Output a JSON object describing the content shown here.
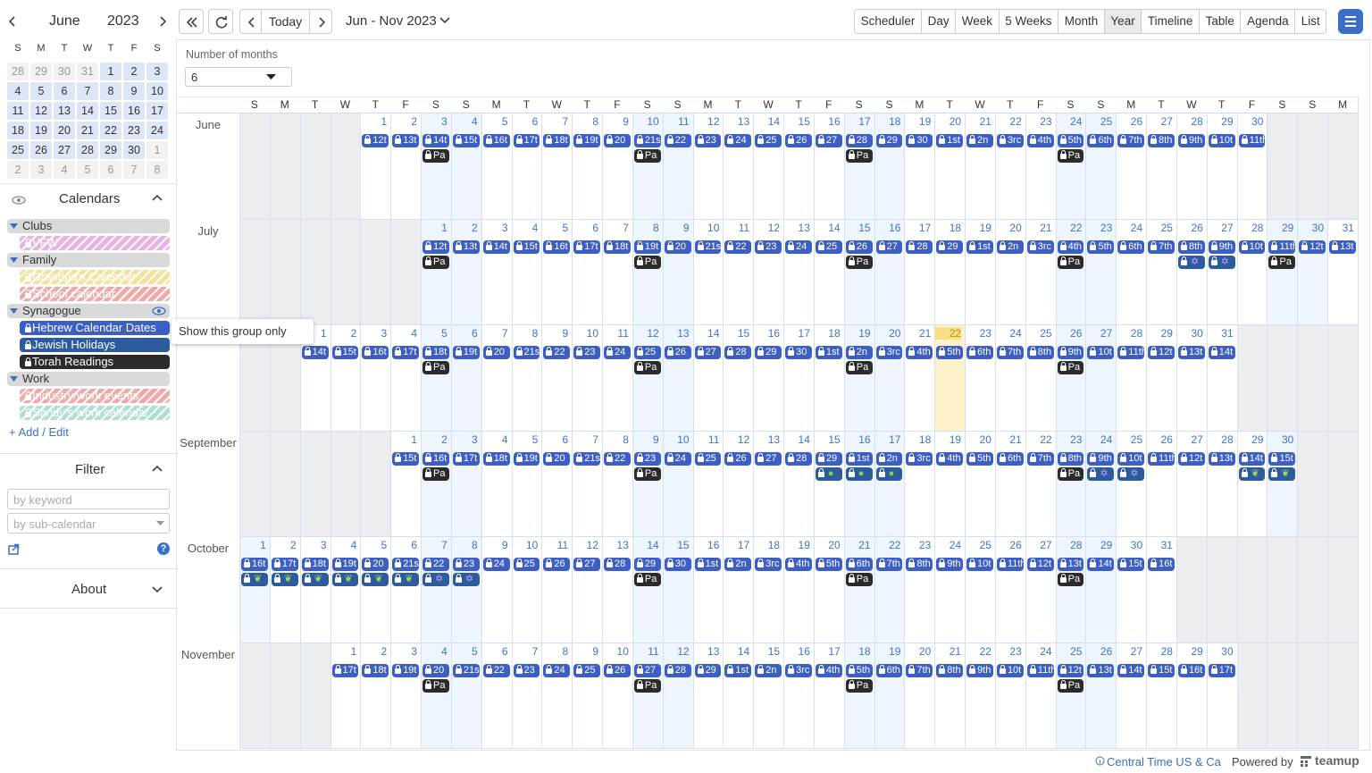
{
  "toolbar": {
    "today": "Today",
    "range": "Jun - Nov 2023",
    "views": [
      "Scheduler",
      "Day",
      "Week",
      "5 Weeks",
      "Month",
      "Year",
      "Timeline",
      "Table",
      "Agenda",
      "List"
    ],
    "active": 5
  },
  "mini_calendar": {
    "month": "June",
    "year": "2023",
    "weekdays": [
      "S",
      "M",
      "T",
      "W",
      "T",
      "F",
      "S"
    ],
    "weeks": [
      [
        28,
        29,
        30,
        31,
        1,
        2,
        3
      ],
      [
        4,
        5,
        6,
        7,
        8,
        9,
        10
      ],
      [
        11,
        12,
        13,
        14,
        15,
        16,
        17
      ],
      [
        18,
        19,
        20,
        21,
        22,
        23,
        24
      ],
      [
        25,
        26,
        27,
        28,
        29,
        30,
        1
      ],
      [
        2,
        3,
        4,
        5,
        6,
        7,
        8
      ]
    ]
  },
  "sidebar": {
    "calendars_title": "Calendars",
    "groups": [
      {
        "name": "Clubs",
        "items": [
          {
            "name": "VFW",
            "color": "#e5a5dc",
            "hidden": true
          }
        ]
      },
      {
        "name": "Family",
        "items": [
          {
            "name": "Grandpa's Calendar",
            "color": "#f3dc8c",
            "hidden": true
          },
          {
            "name": "School calendar",
            "color": "#ee9b9b",
            "hidden": true
          }
        ]
      },
      {
        "name": "Synagogue",
        "items": [
          {
            "name": "Hebrew Calendar Dates",
            "color": "#3d5fc4",
            "hidden": false
          },
          {
            "name": "Jewish Holidays",
            "color": "#2d5c9e",
            "hidden": false
          },
          {
            "name": "Torah Readings",
            "color": "#2b2b2b",
            "hidden": false
          }
        ]
      },
      {
        "name": "Work",
        "items": [
          {
            "name": "Industry/work events",
            "color": "#ee9a9a",
            "hidden": true
          },
          {
            "name": "Sandy's work calendar",
            "color": "#a3dacb",
            "hidden": true
          }
        ]
      }
    ],
    "add_edit": "+ Add / Edit",
    "tooltip": "Show this group only",
    "filter_title": "Filter",
    "keyword_placeholder": "by keyword",
    "subcalendar_placeholder": "by sub-calendar",
    "help": "?",
    "about": "About"
  },
  "months_control": {
    "label": "Number of months",
    "value": "6"
  },
  "grid": {
    "weekday_headers": [
      "S",
      "M",
      "T",
      "W",
      "T",
      "F",
      "S",
      "S",
      "M",
      "T",
      "W",
      "T",
      "F",
      "S",
      "S",
      "M",
      "T",
      "W",
      "T",
      "F",
      "S",
      "S",
      "M",
      "T",
      "W",
      "T",
      "F",
      "S",
      "S",
      "M",
      "T",
      "W",
      "T",
      "F",
      "S",
      "S",
      "M"
    ],
    "date_color": "#3d5fc4",
    "torah_color": "#2b2b2b",
    "holiday_color": "#2d5c9e",
    "today": {
      "month_index": 2,
      "day_index": 21
    },
    "months": [
      {
        "name": "June",
        "start_weekday": 4,
        "days": [
          1,
          2,
          3,
          4,
          5,
          6,
          7,
          8,
          9,
          10,
          11,
          12,
          13,
          14,
          15,
          16,
          17,
          18,
          19,
          20,
          21,
          22,
          23,
          24,
          25,
          26,
          27,
          28,
          29,
          30
        ],
        "dates": [
          "12t",
          "13t",
          "14t",
          "15t",
          "16t",
          "17t",
          "18t",
          "19t",
          "20",
          "21s",
          "22",
          "23",
          "24",
          "25",
          "26",
          "27",
          "28",
          "29",
          "30",
          "1st",
          "2n",
          "3rc",
          "4th",
          "5th",
          "6th",
          "7th",
          "8th",
          "9th",
          "10t",
          "11th"
        ],
        "extra": [
          null,
          null,
          "Pa",
          null,
          null,
          null,
          null,
          null,
          null,
          "Pa",
          null,
          null,
          null,
          null,
          null,
          null,
          "Pa",
          null,
          null,
          null,
          null,
          null,
          null,
          "Pa",
          null,
          null,
          null,
          null,
          null,
          null
        ]
      },
      {
        "name": "July",
        "start_weekday": 6,
        "days": [
          1,
          2,
          3,
          4,
          5,
          6,
          7,
          8,
          9,
          10,
          11,
          12,
          13,
          14,
          15,
          16,
          17,
          18,
          19,
          20,
          21,
          22,
          23,
          24,
          25,
          26,
          27,
          28,
          29,
          30,
          31
        ],
        "dates": [
          "12t",
          "13t",
          "14t",
          "15t",
          "16t",
          "17t",
          "18t",
          "19t",
          "20",
          "21s",
          "22",
          "23",
          "24",
          "25",
          "26",
          "27",
          "28",
          "29",
          "1st",
          "2n",
          "3rc",
          "4th",
          "5th",
          "6th",
          "7th",
          "8th",
          "9th",
          "10t",
          "11th",
          "12t",
          "13t"
        ],
        "extra": [
          "Pa",
          null,
          null,
          null,
          null,
          null,
          null,
          "Pa",
          null,
          null,
          null,
          null,
          null,
          null,
          "Pa",
          null,
          null,
          null,
          null,
          null,
          null,
          "Pa",
          null,
          null,
          null,
          {
            "icon": "✡",
            "color": "#c8a2ff"
          },
          {
            "icon": "✡",
            "color": "#c8a2ff"
          },
          null,
          "Pa",
          null,
          null
        ]
      },
      {
        "name": "August",
        "start_weekday": 2,
        "days": [
          1,
          2,
          3,
          4,
          5,
          6,
          7,
          8,
          9,
          10,
          11,
          12,
          13,
          14,
          15,
          16,
          17,
          18,
          19,
          20,
          21,
          22,
          23,
          24,
          25,
          26,
          27,
          28,
          29,
          30,
          31
        ],
        "dates": [
          "14t",
          "15t",
          "16t",
          "17t",
          "18t",
          "19t",
          "20",
          "21s",
          "22",
          "23",
          "24",
          "25",
          "26",
          "27",
          "28",
          "29",
          "30",
          "1st",
          "2n",
          "3rc",
          "4th",
          "5th",
          "6th",
          "7th",
          "8th",
          "9th",
          "10t",
          "11th",
          "12t",
          "13t",
          "14t"
        ],
        "extra": [
          null,
          null,
          null,
          null,
          "Pa",
          null,
          null,
          null,
          null,
          null,
          null,
          "Pa",
          null,
          null,
          null,
          null,
          null,
          null,
          "Pa",
          null,
          null,
          null,
          null,
          null,
          null,
          "Pa",
          null,
          null,
          null,
          null,
          null
        ]
      },
      {
        "name": "September",
        "start_weekday": 5,
        "days": [
          1,
          2,
          3,
          4,
          5,
          6,
          7,
          8,
          9,
          10,
          11,
          12,
          13,
          14,
          15,
          16,
          17,
          18,
          19,
          20,
          21,
          22,
          23,
          24,
          25,
          26,
          27,
          28,
          29,
          30
        ],
        "dates": [
          "15t",
          "16t",
          "17t",
          "18t",
          "19t",
          "20",
          "21s",
          "22",
          "23",
          "24",
          "25",
          "26",
          "27",
          "28",
          "29",
          "1st",
          "2n",
          "3rc",
          "4th",
          "5th",
          "6th",
          "7th",
          "8th",
          "9th",
          "10t",
          "11th",
          "12t",
          "13t",
          "14t",
          "15t"
        ],
        "extra": [
          null,
          "Pa",
          null,
          null,
          null,
          null,
          null,
          null,
          "Pa",
          null,
          null,
          null,
          null,
          null,
          {
            "icon": "●",
            "color": "#7fcf5c"
          },
          {
            "icon": "●",
            "color": "#7fcf5c"
          },
          {
            "icon": "●",
            "color": "#7fcf5c"
          },
          null,
          null,
          null,
          null,
          null,
          "Pa",
          {
            "icon": "✡",
            "color": "#c8a2ff"
          },
          {
            "icon": "✡",
            "color": "#c8a2ff"
          },
          null,
          null,
          null,
          {
            "icon": "❦",
            "color": "#a4d65e"
          },
          {
            "icon": "❦",
            "color": "#a4d65e"
          }
        ]
      },
      {
        "name": "October",
        "start_weekday": 0,
        "days": [
          1,
          2,
          3,
          4,
          5,
          6,
          7,
          8,
          9,
          10,
          11,
          12,
          13,
          14,
          15,
          16,
          17,
          18,
          19,
          20,
          21,
          22,
          23,
          24,
          25,
          26,
          27,
          28,
          29,
          30,
          31
        ],
        "dates": [
          "16t",
          "17t",
          "18t",
          "19t",
          "20",
          "21s",
          "22",
          "23",
          "24",
          "25",
          "26",
          "27",
          "28",
          "29",
          "30",
          "1st",
          "2n",
          "3rc",
          "4th",
          "5th",
          "6th",
          "7th",
          "8th",
          "9th",
          "10t",
          "11th",
          "12t",
          "13t",
          "14t",
          "15t",
          "16t"
        ],
        "extra": [
          {
            "icon": "❦",
            "color": "#a4d65e"
          },
          {
            "icon": "❦",
            "color": "#a4d65e"
          },
          {
            "icon": "❦",
            "color": "#a4d65e"
          },
          {
            "icon": "❦",
            "color": "#a4d65e"
          },
          {
            "icon": "❦",
            "color": "#a4d65e"
          },
          {
            "icon": "❦",
            "color": "#a4d65e"
          },
          {
            "icon": "✡",
            "color": "#c8a2ff"
          },
          {
            "icon": "✡",
            "color": "#c8a2ff"
          },
          null,
          null,
          null,
          null,
          null,
          "Pa",
          null,
          null,
          null,
          null,
          null,
          null,
          "Pa",
          null,
          null,
          null,
          null,
          null,
          null,
          "Pa",
          null,
          null,
          null
        ]
      },
      {
        "name": "November",
        "start_weekday": 3,
        "days": [
          1,
          2,
          3,
          4,
          5,
          6,
          7,
          8,
          9,
          10,
          11,
          12,
          13,
          14,
          15,
          16,
          17,
          18,
          19,
          20,
          21,
          22,
          23,
          24,
          25,
          26,
          27,
          28,
          29,
          30
        ],
        "dates": [
          "17t",
          "18t",
          "19t",
          "20",
          "21s",
          "22",
          "23",
          "24",
          "25",
          "26",
          "27",
          "28",
          "29",
          "1st",
          "2n",
          "3rc",
          "4th",
          "5th",
          "6th",
          "7th",
          "8th",
          "9th",
          "10t",
          "11th",
          "12t",
          "13t",
          "14t",
          "15t",
          "16t",
          "17t"
        ],
        "extra": [
          null,
          null,
          null,
          "Pa",
          null,
          null,
          null,
          null,
          null,
          null,
          "Pa",
          null,
          null,
          null,
          null,
          null,
          null,
          "Pa",
          null,
          null,
          null,
          null,
          null,
          null,
          "Pa",
          null,
          null,
          null,
          null,
          null
        ]
      }
    ]
  },
  "footer": {
    "timezone": "Central Time US & Ca",
    "powered": "Powered by",
    "brand": "teamup"
  }
}
